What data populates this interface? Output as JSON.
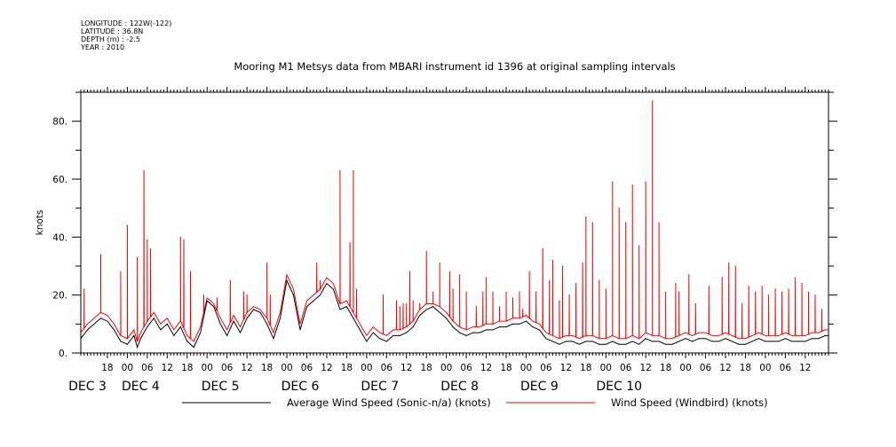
{
  "header": {
    "longitude": "LONGITUDE : 122W(-122)",
    "latitude": "LATITUDE : 36.8N",
    "depth": "DEPTH (m) : -2.5",
    "year": "YEAR : 2010"
  },
  "colors": {
    "red_series": "#ff0000",
    "black_series": "#000000"
  },
  "chart_data": {
    "type": "line",
    "title": "Mooring M1 Metsys data from MBARI instrument id 1396 at original sampling intervals",
    "ylabel": "knots",
    "ylim": [
      0,
      90
    ],
    "yticks": [
      0,
      20,
      40,
      60,
      80
    ],
    "ytick_labels": [
      "0.",
      "20.",
      "40.",
      "60.",
      "80."
    ],
    "x_unit": "hours since DEC 3 00:00, 2010",
    "xlim": [
      10,
      235
    ],
    "hour_ticks": [
      {
        "t": 18,
        "label": "18"
      },
      {
        "t": 24,
        "label": "00"
      },
      {
        "t": 30,
        "label": "06"
      },
      {
        "t": 36,
        "label": "12"
      },
      {
        "t": 42,
        "label": "18"
      },
      {
        "t": 48,
        "label": "00"
      },
      {
        "t": 54,
        "label": "06"
      },
      {
        "t": 60,
        "label": "12"
      },
      {
        "t": 66,
        "label": "18"
      },
      {
        "t": 72,
        "label": "00"
      },
      {
        "t": 78,
        "label": "06"
      },
      {
        "t": 84,
        "label": "12"
      },
      {
        "t": 90,
        "label": "18"
      },
      {
        "t": 96,
        "label": "00"
      },
      {
        "t": 102,
        "label": "06"
      },
      {
        "t": 108,
        "label": "12"
      },
      {
        "t": 114,
        "label": "18"
      },
      {
        "t": 120,
        "label": "00"
      },
      {
        "t": 126,
        "label": "06"
      },
      {
        "t": 132,
        "label": "12"
      },
      {
        "t": 138,
        "label": "18"
      },
      {
        "t": 144,
        "label": "00"
      },
      {
        "t": 150,
        "label": "06"
      },
      {
        "t": 156,
        "label": "12"
      },
      {
        "t": 162,
        "label": "18"
      },
      {
        "t": 168,
        "label": "00"
      },
      {
        "t": 174,
        "label": "06"
      },
      {
        "t": 180,
        "label": "12"
      },
      {
        "t": 186,
        "label": "18"
      },
      {
        "t": 192,
        "label": "00"
      },
      {
        "t": 198,
        "label": "06"
      },
      {
        "t": 204,
        "label": "12"
      },
      {
        "t": 210,
        "label": "18"
      },
      {
        "t": 216,
        "label": "00"
      },
      {
        "t": 222,
        "label": "06"
      },
      {
        "t": 228,
        "label": "12"
      }
    ],
    "day_labels": [
      {
        "t": 12,
        "label": "DEC  3"
      },
      {
        "t": 28,
        "label": "DEC  4"
      },
      {
        "t": 52,
        "label": "DEC  5"
      },
      {
        "t": 76,
        "label": "DEC  6"
      },
      {
        "t": 100,
        "label": "DEC  7"
      },
      {
        "t": 124,
        "label": "DEC  8"
      },
      {
        "t": 148,
        "label": "DEC  9"
      },
      {
        "t": 172,
        "label": "DEC 10"
      }
    ],
    "series": [
      {
        "name": "Average Wind Speed (Sonic-n/a) (knots)",
        "color": "#000000",
        "x": [
          10,
          12,
          14,
          16,
          18,
          20,
          22,
          24,
          26,
          27,
          28,
          30,
          32,
          34,
          36,
          38,
          40,
          42,
          44,
          46,
          48,
          50,
          52,
          54,
          56,
          58,
          60,
          62,
          64,
          66,
          68,
          70,
          72,
          74,
          76,
          78,
          80,
          82,
          84,
          86,
          88,
          90,
          92,
          94,
          96,
          98,
          100,
          102,
          104,
          106,
          108,
          110,
          112,
          114,
          116,
          118,
          120,
          122,
          124,
          126,
          128,
          130,
          132,
          134,
          136,
          138,
          140,
          142,
          144,
          146,
          148,
          150,
          152,
          154,
          156,
          158,
          160,
          162,
          164,
          166,
          168,
          170,
          172,
          174,
          176,
          178,
          180,
          182,
          184,
          186,
          188,
          190,
          192,
          194,
          196,
          198,
          200,
          202,
          204,
          206,
          208,
          210,
          212,
          214,
          216,
          218,
          220,
          222,
          224,
          226,
          228,
          230,
          232,
          234,
          235
        ],
        "y": [
          5,
          8,
          10,
          12,
          11,
          8,
          4,
          3,
          6,
          2,
          5,
          9,
          12,
          8,
          10,
          6,
          9,
          4,
          2,
          7,
          18,
          16,
          10,
          6,
          11,
          7,
          12,
          15,
          14,
          10,
          5,
          12,
          25,
          20,
          8,
          16,
          18,
          20,
          24,
          22,
          15,
          16,
          12,
          8,
          4,
          7,
          5,
          4,
          6,
          6,
          7,
          9,
          13,
          15,
          16,
          14,
          12,
          9,
          7,
          6,
          7,
          7,
          8,
          8,
          9,
          9,
          10,
          10,
          11,
          9,
          8,
          5,
          4,
          3,
          4,
          4,
          3,
          4,
          4,
          3,
          3,
          4,
          3,
          3,
          4,
          3,
          5,
          4,
          4,
          3,
          3,
          4,
          5,
          4,
          5,
          5,
          4,
          4,
          5,
          4,
          3,
          3,
          4,
          5,
          4,
          4,
          4,
          5,
          4,
          4,
          4,
          5,
          5,
          6,
          6
        ]
      },
      {
        "name": "Wind Speed (Windbird) (knots)",
        "color": "#ff0000",
        "baseline": {
          "x": [
            10,
            12,
            14,
            16,
            18,
            20,
            22,
            24,
            26,
            27,
            28,
            30,
            32,
            34,
            36,
            38,
            40,
            42,
            44,
            46,
            48,
            50,
            52,
            54,
            56,
            58,
            60,
            62,
            64,
            66,
            68,
            70,
            72,
            74,
            76,
            78,
            80,
            82,
            84,
            86,
            88,
            90,
            92,
            94,
            96,
            98,
            100,
            102,
            104,
            106,
            108,
            110,
            112,
            114,
            116,
            118,
            120,
            122,
            124,
            126,
            128,
            130,
            132,
            134,
            136,
            138,
            140,
            142,
            144,
            146,
            148,
            150,
            152,
            154,
            156,
            158,
            160,
            162,
            164,
            166,
            168,
            170,
            172,
            174,
            176,
            178,
            180,
            182,
            184,
            186,
            188,
            190,
            192,
            194,
            196,
            198,
            200,
            202,
            204,
            206,
            208,
            210,
            212,
            214,
            216,
            218,
            220,
            222,
            224,
            226,
            228,
            230,
            232,
            234,
            235
          ],
          "y": [
            7,
            10,
            12,
            14,
            13,
            10,
            6,
            5,
            8,
            4,
            7,
            11,
            14,
            10,
            12,
            8,
            11,
            6,
            4,
            9,
            19,
            17,
            12,
            8,
            13,
            9,
            14,
            16,
            15,
            12,
            7,
            14,
            27,
            22,
            10,
            18,
            20,
            22,
            26,
            24,
            17,
            18,
            14,
            10,
            6,
            9,
            7,
            6,
            8,
            8,
            9,
            11,
            15,
            17,
            17,
            16,
            14,
            11,
            9,
            8,
            9,
            9,
            10,
            10,
            11,
            11,
            12,
            12,
            13,
            11,
            10,
            7,
            6,
            5,
            6,
            6,
            5,
            6,
            6,
            5,
            5,
            6,
            5,
            5,
            6,
            5,
            7,
            6,
            6,
            5,
            5,
            6,
            7,
            6,
            7,
            7,
            6,
            6,
            7,
            6,
            5,
            5,
            6,
            7,
            6,
            6,
            6,
            7,
            6,
            6,
            6,
            7,
            7,
            8,
            8
          ]
        },
        "spikes": {
          "x": [
            11,
            16,
            22,
            24,
            27,
            29,
            30,
            31,
            40,
            41,
            43,
            47,
            51,
            55,
            59,
            60,
            66,
            67,
            81,
            82,
            88,
            91,
            92,
            93,
            101,
            105,
            106,
            107,
            108,
            109,
            110,
            112,
            114,
            116,
            118,
            121,
            122,
            124,
            126,
            129,
            131,
            132,
            134,
            136,
            138,
            140,
            142,
            143,
            145,
            147,
            149,
            151,
            152,
            154,
            155,
            157,
            159,
            161,
            162,
            164,
            166,
            168,
            170,
            172,
            174,
            176,
            178,
            180,
            182,
            184,
            186,
            189,
            190,
            193,
            195,
            199,
            203,
            205,
            207,
            209,
            211,
            213,
            215,
            217,
            219,
            221,
            223,
            225,
            227,
            229,
            231,
            233
          ],
          "y": [
            22,
            34,
            28,
            44,
            33,
            63,
            39,
            36,
            40,
            39,
            28,
            20,
            19,
            25,
            21,
            20,
            31,
            20,
            31,
            25,
            63,
            38,
            63,
            22,
            20,
            18,
            16,
            17,
            17,
            28,
            18,
            17,
            35,
            21,
            31,
            28,
            22,
            27,
            21,
            16,
            21,
            26,
            21,
            16,
            21,
            19,
            21,
            15,
            28,
            21,
            36,
            25,
            32,
            18,
            30,
            20,
            24,
            31,
            47,
            45,
            25,
            22,
            59,
            50,
            45,
            58,
            37,
            59,
            87,
            45,
            21,
            24,
            21,
            27,
            17,
            23,
            26,
            31,
            30,
            17,
            23,
            21,
            23,
            20,
            22,
            21,
            22,
            26,
            24,
            21,
            20,
            15
          ]
        }
      }
    ],
    "legend": [
      {
        "label": "Average Wind Speed (Sonic-n/a) (knots)",
        "color": "#000000"
      },
      {
        "label": "Wind Speed (Windbird) (knots)",
        "color": "#ff0000"
      }
    ],
    "legend_position": "bottom",
    "grid": false
  }
}
